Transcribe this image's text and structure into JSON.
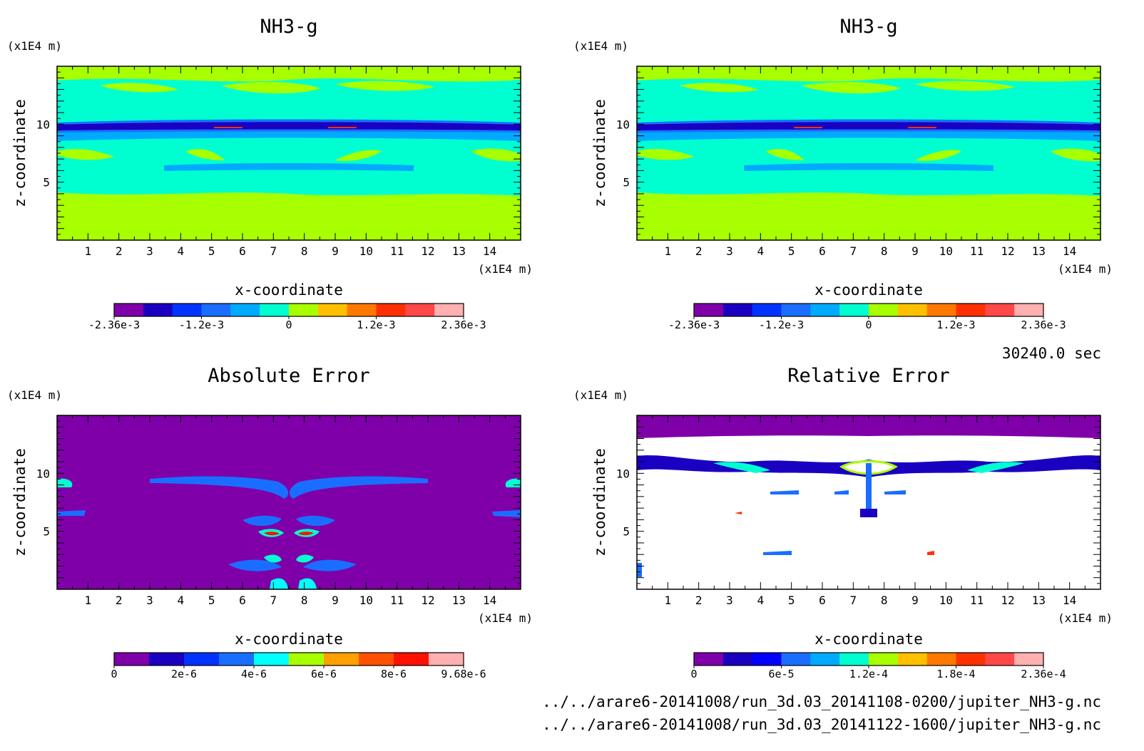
{
  "time_label": "30240.0 sec",
  "file_paths": [
    "../../arare6-20141008/run_3d.03_20141108-0200/jupiter_NH3-g.nc",
    "../../arare6-20141008/run_3d.03_20141122-1600/jupiter_NH3-g.nc"
  ],
  "chart_data": [
    {
      "type": "heatmap",
      "title": "NH3-g",
      "xlabel": "x-coordinate",
      "ylabel": "z-coordinate",
      "x_unit": "(x1E4 m)",
      "y_unit": "(x1E4 m)",
      "xlim": [
        0,
        15
      ],
      "ylim": [
        0,
        15
      ],
      "xticks": [
        1,
        2,
        3,
        4,
        5,
        6,
        7,
        8,
        9,
        10,
        11,
        12,
        13,
        14
      ],
      "yticks": [
        5,
        10
      ],
      "colorbar": {
        "colors": [
          "#7f00a8",
          "#1a00c0",
          "#0033ff",
          "#1a6eff",
          "#00aaff",
          "#00ffd0",
          "#a8ff00",
          "#ffc000",
          "#ff7800",
          "#ff3000",
          "#ff4848",
          "#ffb0b0"
        ],
        "tick_labels": [
          "-2.36e-3",
          "-1.2e-3",
          "0",
          "1.2e-3",
          "2.36e-3"
        ]
      }
    },
    {
      "type": "heatmap",
      "title": "NH3-g",
      "xlabel": "x-coordinate",
      "ylabel": "z-coordinate",
      "x_unit": "(x1E4 m)",
      "y_unit": "(x1E4 m)",
      "xlim": [
        0,
        15
      ],
      "ylim": [
        0,
        15
      ],
      "xticks": [
        1,
        2,
        3,
        4,
        5,
        6,
        7,
        8,
        9,
        10,
        11,
        12,
        13,
        14
      ],
      "yticks": [
        5,
        10
      ],
      "colorbar": {
        "colors": [
          "#7f00a8",
          "#1a00c0",
          "#0033ff",
          "#1a6eff",
          "#00aaff",
          "#00ffd0",
          "#a8ff00",
          "#ffc000",
          "#ff7800",
          "#ff3000",
          "#ff4848",
          "#ffb0b0"
        ],
        "tick_labels": [
          "-2.36e-3",
          "-1.2e-3",
          "0",
          "1.2e-3",
          "2.36e-3"
        ]
      }
    },
    {
      "type": "heatmap",
      "title": "Absolute Error",
      "xlabel": "x-coordinate",
      "ylabel": "z-coordinate",
      "x_unit": "(x1E4 m)",
      "y_unit": "(x1E4 m)",
      "xlim": [
        0,
        15
      ],
      "ylim": [
        0,
        15
      ],
      "xticks": [
        1,
        2,
        3,
        4,
        5,
        6,
        7,
        8,
        9,
        10,
        11,
        12,
        13,
        14
      ],
      "yticks": [
        5,
        10
      ],
      "colorbar": {
        "colors": [
          "#7f00a8",
          "#1a00c0",
          "#0033ff",
          "#1a6eff",
          "#00ffff",
          "#a8ff00",
          "#ffa000",
          "#ff5000",
          "#ff1000",
          "#ffb0b0"
        ],
        "tick_labels": [
          "0",
          "2e-6",
          "4e-6",
          "6e-6",
          "8e-6",
          "9.68e-6"
        ]
      }
    },
    {
      "type": "heatmap",
      "title": "Relative Error",
      "xlabel": "x-coordinate",
      "ylabel": "z-coordinate",
      "x_unit": "(x1E4 m)",
      "y_unit": "(x1E4 m)",
      "xlim": [
        0,
        15
      ],
      "ylim": [
        0,
        15
      ],
      "xticks": [
        1,
        2,
        3,
        4,
        5,
        6,
        7,
        8,
        9,
        10,
        11,
        12,
        13,
        14
      ],
      "yticks": [
        5,
        10
      ],
      "colorbar": {
        "colors": [
          "#7f00a8",
          "#1a00c0",
          "#0000ff",
          "#1a6eff",
          "#00aaff",
          "#00ffd0",
          "#a8ff00",
          "#ffc000",
          "#ff7800",
          "#ff3000",
          "#ff4848",
          "#ffb0b0"
        ],
        "tick_labels": [
          "0",
          "6e-5",
          "1.2e-4",
          "1.8e-4",
          "2.36e-4"
        ]
      }
    }
  ]
}
